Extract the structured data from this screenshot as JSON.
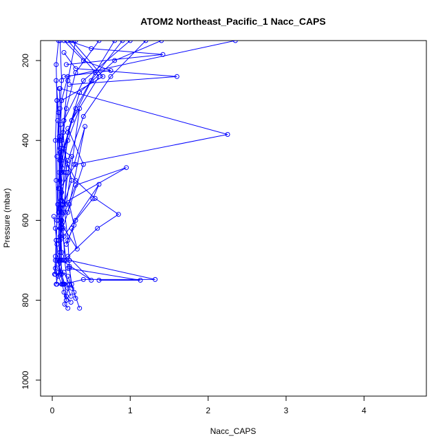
{
  "chart_data": {
    "type": "line",
    "title": "ATOM2 Northeast_Pacific_1 Nacc_CAPS",
    "xlabel": "Nacc_CAPS",
    "ylabel": "Pressure (mbar)",
    "xlim": [
      -0.15,
      4.8
    ],
    "ylim": [
      1040,
      150
    ],
    "y_reversed": true,
    "x_ticks": [
      0,
      1,
      2,
      3,
      4
    ],
    "y_ticks": [
      200,
      400,
      600,
      800,
      1000
    ],
    "grid": false,
    "legend": "none",
    "colors": {
      "series": "#0000ff",
      "axis": "#000000"
    },
    "series": [
      {
        "x": [
          0.1,
          0.12,
          0.1,
          0.08,
          0.09,
          0.11,
          0.1,
          0.12,
          0.11,
          0.13,
          0.15,
          0.18,
          0.16,
          0.2
        ],
        "y": [
          150,
          250,
          320,
          400,
          480,
          550,
          620,
          690,
          730,
          760,
          780,
          800,
          810,
          820
        ]
      },
      {
        "x": [
          0.6,
          0.3,
          0.18,
          0.12,
          0.1,
          0.09,
          0.08,
          0.1,
          0.08,
          0.12
        ],
        "y": [
          150,
          230,
          320,
          420,
          500,
          580,
          650,
          700,
          740,
          760
        ]
      },
      {
        "x": [
          1.4,
          0.8,
          0.35,
          0.2,
          0.15,
          0.12,
          0.1,
          0.08,
          0.05
        ],
        "y": [
          150,
          200,
          280,
          380,
          480,
          580,
          650,
          730,
          760
        ]
      },
      {
        "x": [
          2.35,
          0.2,
          0.12,
          0.1,
          0.08,
          0.05,
          0.06,
          0.04
        ],
        "y": [
          150,
          240,
          300,
          400,
          520,
          650,
          700,
          735
        ]
      },
      {
        "x": [
          0.08,
          0.05,
          0.06,
          0.04,
          0.05,
          0.06,
          0.04,
          0.03
        ],
        "y": [
          150,
          210,
          300,
          400,
          500,
          600,
          700,
          735
        ]
      },
      {
        "x": [
          0.1,
          2.25,
          0.3,
          0.1,
          0.12,
          0.1
        ],
        "y": [
          270,
          385,
          460,
          520,
          600,
          680
        ]
      },
      {
        "x": [
          1.0,
          0.4,
          0.15,
          0.1,
          0.12
        ],
        "y": [
          150,
          250,
          350,
          450,
          550
        ]
      },
      {
        "x": [
          0.12,
          0.95,
          0.3,
          0.12,
          0.1
        ],
        "y": [
          560,
          468,
          512,
          600,
          700
        ]
      },
      {
        "x": [
          0.8,
          0.55,
          0.3,
          0.15,
          0.1
        ],
        "y": [
          150,
          230,
          320,
          420,
          500
        ]
      },
      {
        "x": [
          0.2,
          0.6,
          0.25,
          0.1,
          0.08
        ],
        "y": [
          150,
          240,
          350,
          450,
          520
        ]
      },
      {
        "x": [
          0.9,
          0.5,
          0.25,
          0.12,
          0.08
        ],
        "y": [
          150,
          250,
          350,
          450,
          520
        ]
      },
      {
        "x": [
          1.2,
          0.75,
          0.4,
          0.2,
          0.1
        ],
        "y": [
          150,
          240,
          340,
          450,
          560
        ]
      },
      {
        "x": [
          0.3,
          0.2,
          0.15,
          0.1
        ],
        "y": [
          150,
          250,
          350,
          450
        ]
      },
      {
        "x": [
          0.22,
          1.6,
          0.3,
          0.15
        ],
        "y": [
          260,
          240,
          220,
          180
        ]
      },
      {
        "x": [
          0.18,
          1.42,
          0.5,
          0.2
        ],
        "y": [
          210,
          185,
          170,
          150
        ]
      },
      {
        "x": [
          0.15,
          0.75,
          0.4,
          0.15
        ],
        "y": [
          240,
          225,
          200,
          150
        ]
      },
      {
        "x": [
          0.12,
          0.65,
          0.25
        ],
        "y": [
          300,
          240,
          150
        ]
      },
      {
        "x": [
          0.15,
          0.58,
          0.85,
          0.55,
          0.3,
          0.2
        ],
        "y": [
          700,
          620,
          585,
          545,
          500,
          460
        ]
      },
      {
        "x": [
          0.15,
          0.6,
          0.52,
          0.3,
          0.18
        ],
        "y": [
          640,
          510,
          546,
          600,
          660
        ]
      },
      {
        "x": [
          0.18,
          0.35,
          0.2,
          0.12
        ],
        "y": [
          560,
          320,
          400,
          480
        ]
      },
      {
        "x": [
          0.2,
          0.42,
          0.28
        ],
        "y": [
          580,
          365,
          460
        ]
      },
      {
        "x": [
          0.08,
          0.25,
          0.12
        ],
        "y": [
          600,
          500,
          400
        ]
      },
      {
        "x": [
          0.1,
          0.4,
          0.2
        ],
        "y": [
          640,
          460,
          370
        ]
      },
      {
        "x": [
          0.2,
          1.13,
          0.6
        ],
        "y": [
          720,
          750,
          750
        ]
      },
      {
        "x": [
          0.22,
          1.32,
          0.4,
          0.15
        ],
        "y": [
          700,
          748,
          748,
          760
        ]
      },
      {
        "x": [
          0.12,
          0.5,
          0.2
        ],
        "y": [
          700,
          750,
          690
        ]
      },
      {
        "x": [
          0.3,
          0.25,
          0.22
        ],
        "y": [
          795,
          760,
          720
        ]
      },
      {
        "x": [
          0.35,
          0.28,
          0.2
        ],
        "y": [
          820,
          780,
          740
        ]
      },
      {
        "x": [
          0.12,
          0.32,
          0.25
        ],
        "y": [
          610,
          672,
          620
        ]
      },
      {
        "x": [
          0.18,
          0.28,
          0.22
        ],
        "y": [
          660,
          612,
          560
        ]
      },
      {
        "x": [
          0.1,
          0.25,
          0.2,
          0.15,
          0.12,
          0.18
        ],
        "y": [
          420,
          440,
          480,
          560,
          620,
          700
        ]
      },
      {
        "x": [
          0.05,
          0.08,
          0.06,
          0.07,
          0.05,
          0.04,
          0.06
        ],
        "y": [
          250,
          330,
          440,
          560,
          650,
          720,
          760
        ]
      },
      {
        "x": [
          0.07,
          0.1,
          0.12,
          0.14,
          0.16,
          0.2,
          0.24
        ],
        "y": [
          350,
          430,
          530,
          620,
          700,
          770,
          790
        ]
      },
      {
        "x": [
          0.02,
          0.04,
          0.06,
          0.08,
          0.1
        ],
        "y": [
          590,
          620,
          660,
          700,
          735
        ]
      },
      {
        "x": [
          0.14,
          0.18,
          0.16,
          0.2,
          0.22,
          0.25
        ],
        "y": [
          380,
          480,
          580,
          650,
          715,
          770
        ]
      },
      {
        "x": [
          0.09,
          0.11,
          0.13,
          0.1,
          0.12
        ],
        "y": [
          270,
          360,
          470,
          570,
          680
        ]
      },
      {
        "x": [
          0.06,
          0.09,
          0.11,
          0.08,
          0.1,
          0.14
        ],
        "y": [
          300,
          390,
          480,
          580,
          680,
          760
        ]
      },
      {
        "x": [
          0.04,
          0.08,
          0.12,
          0.16,
          0.18
        ],
        "y": [
          690,
          710,
          735,
          760,
          800
        ]
      },
      {
        "x": [
          0.15,
          0.22,
          0.18,
          0.24
        ],
        "y": [
          730,
          760,
          790,
          805
        ]
      }
    ]
  }
}
